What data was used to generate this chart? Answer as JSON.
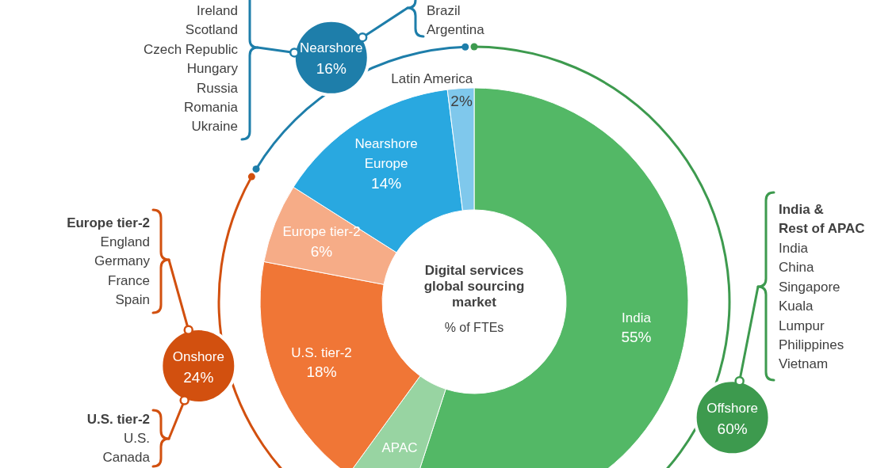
{
  "chart_data": [
    {
      "type": "donut",
      "title": "Digital services global sourcing market",
      "subtitle": "% of FTEs",
      "categories": [
        "India",
        "APAC",
        "U.S. tier-2",
        "Europe tier-2",
        "Nearshore Europe",
        "Latin America"
      ],
      "values": [
        55,
        5,
        18,
        6,
        14,
        2
      ],
      "colors": [
        "#53b866",
        "#98d4a2",
        "#f07636",
        "#f6ac87",
        "#29a8e0",
        "#7fc8ec"
      ],
      "value_labels": [
        "55%",
        null,
        "18%",
        "6%",
        "14%",
        "2%"
      ]
    },
    {
      "type": "donut",
      "categories": [
        "Offshore",
        "Onshore",
        "Nearshore"
      ],
      "values": [
        60,
        24,
        16
      ],
      "colors": [
        "#3d9a4e",
        "#d2500f",
        "#1e7eaa"
      ],
      "value_labels": [
        "60%",
        "24%",
        "16%"
      ],
      "legend": "center",
      "annotations": [
        "Ireland\nScotland\nCzech Republic\nHungary\nRussia\nRomania\nUkraine",
        "Brazil\nArgentina",
        "Europe tier-2",
        "England\nGermany\nFrance\nSpain",
        "U.S. tier-2",
        "U.S.\nCanada",
        "India &\nRest of APAC",
        "India\nChina\nSingapore\nKuala\nLumpur\nPhilippines\nVietnam"
      ]
    }
  ]
}
